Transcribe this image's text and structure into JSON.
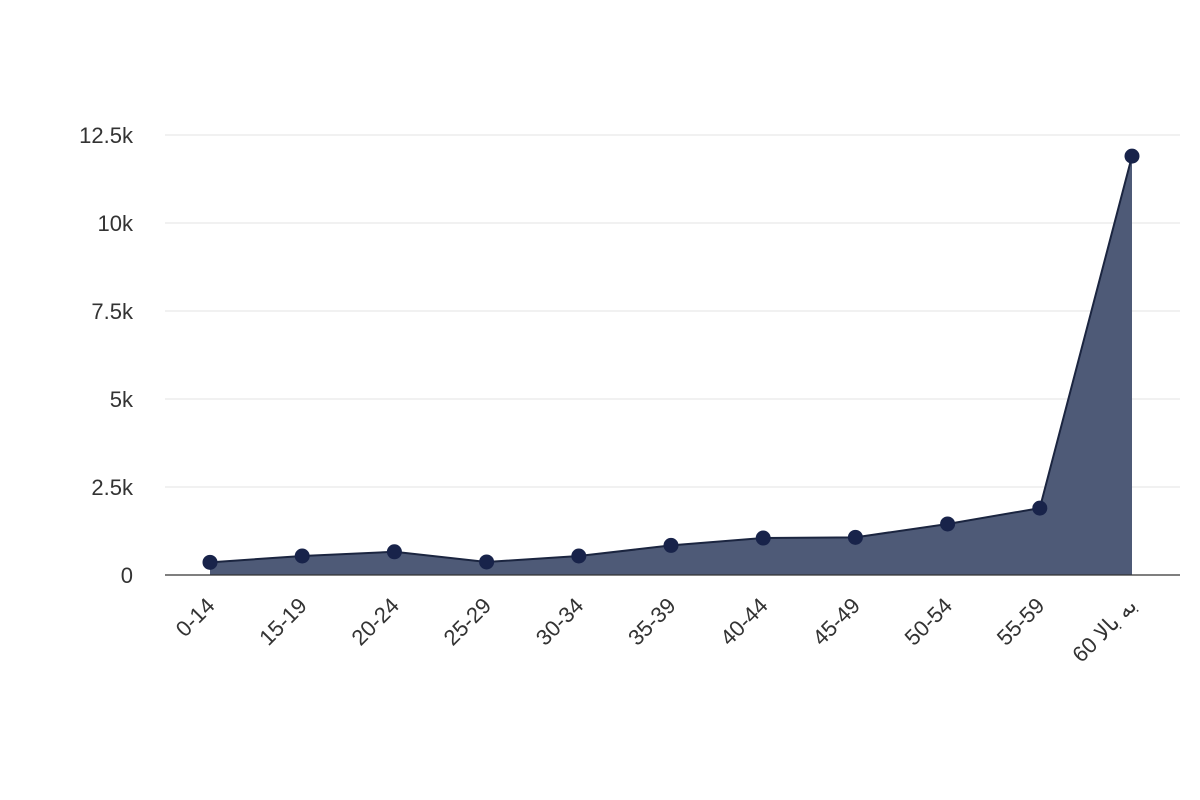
{
  "chart_data": {
    "type": "area",
    "categories": [
      "0-14",
      "15-19",
      "20-24",
      "25-29",
      "30-34",
      "35-39",
      "40-44",
      "45-49",
      "50-54",
      "55-59",
      "60 به بالا"
    ],
    "values": [
      360,
      540,
      660,
      370,
      540,
      840,
      1050,
      1070,
      1450,
      1900,
      11900
    ],
    "title": "",
    "xlabel": "",
    "ylabel": "",
    "ylim": [
      0,
      12500
    ],
    "y_ticks": [
      0,
      2500,
      5000,
      7500,
      10000,
      12500
    ],
    "y_tick_labels": [
      "0",
      "2.5k",
      "5k",
      "7.5k",
      "10k",
      "12.5k"
    ],
    "grid": true,
    "legend": "none",
    "colors": {
      "fill": "#4e5a77",
      "line": "#1b2540",
      "marker": "#18234a"
    }
  }
}
